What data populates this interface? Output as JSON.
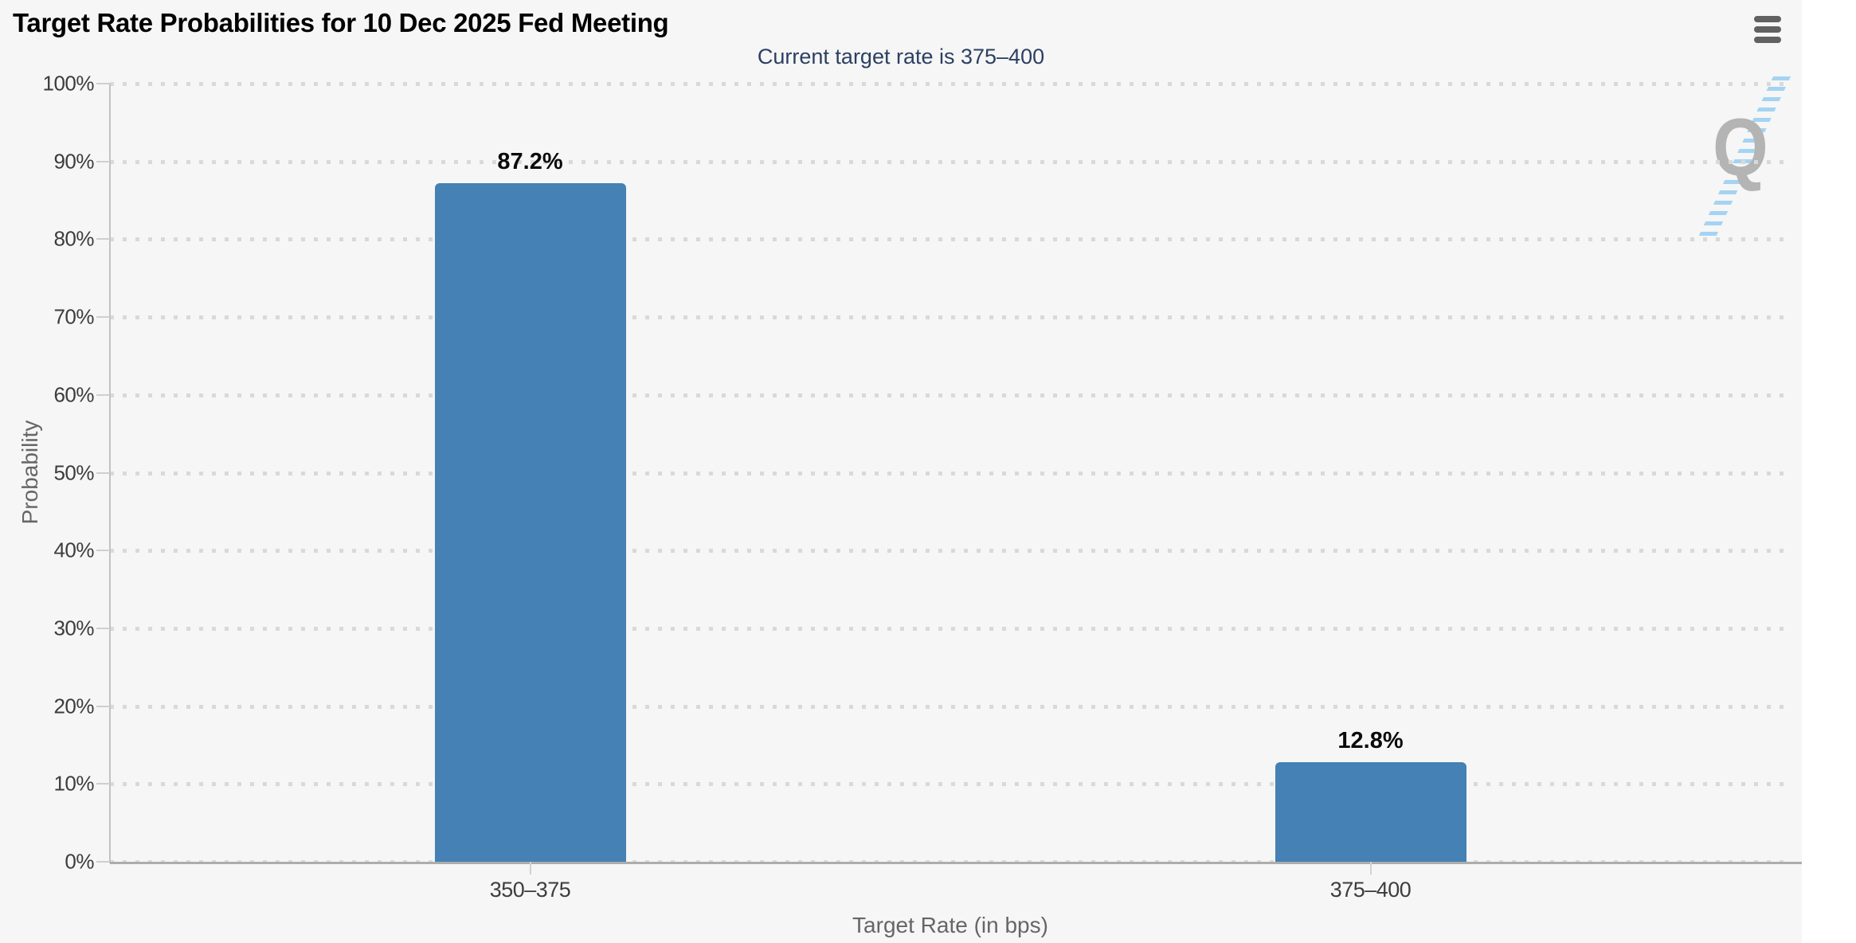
{
  "chart_data": {
    "type": "bar",
    "title": "Target Rate Probabilities for 10 Dec 2025 Fed Meeting",
    "subtitle": "Current target rate is 375–400",
    "categories": [
      "350–375",
      "375–400"
    ],
    "values": [
      87.2,
      12.8
    ],
    "value_labels": [
      "87.2%",
      "12.8%"
    ],
    "xlabel": "Target Rate (in bps)",
    "ylabel": "Probability",
    "ylim": [
      0,
      100
    ],
    "ytick_interval": 10,
    "ytick_labels": [
      "0%",
      "10%",
      "20%",
      "30%",
      "40%",
      "50%",
      "60%",
      "70%",
      "80%",
      "90%",
      "100%"
    ],
    "grid": "dotted-horizontal",
    "legend": "none",
    "bar_color": "#4581B4"
  },
  "colors": {
    "background": "#F5F6F5",
    "bar": "#4581B4",
    "subtitle": "#2C3F63",
    "axis_line": "#ADADAD",
    "grid_dot": "#D9D9D9",
    "tick_label": "#3C3C3C",
    "axis_title": "#666666",
    "menu_icon": "#616161",
    "watermark_gray": "#B4B4B4",
    "watermark_blue": "#96CDF3"
  },
  "watermark": {
    "letter": "Q"
  },
  "menu": {
    "icon": "hamburger-menu-icon"
  }
}
